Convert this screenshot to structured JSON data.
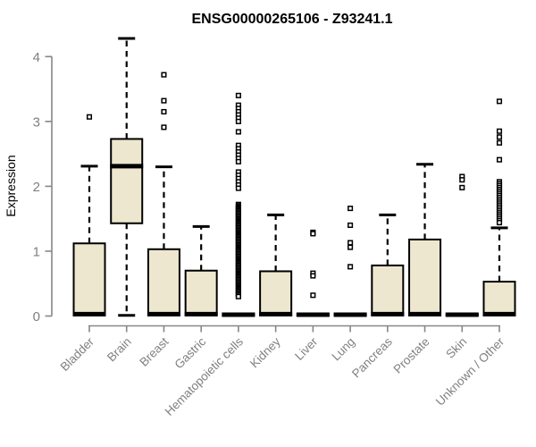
{
  "chart_data": {
    "type": "box",
    "title": "ENSG00000265106 - Z93241.1",
    "xlabel": "",
    "ylabel": "Expression",
    "ylim": [
      0,
      4
    ],
    "yticks": [
      0,
      1,
      2,
      3,
      4
    ],
    "grid": false,
    "legend_position": "none",
    "categories": [
      "Bladder",
      "Brain",
      "Breast",
      "Gastric",
      "Hematopoietic cells",
      "Kidney",
      "Liver",
      "Lung",
      "Pancreas",
      "Prostate",
      "Skin",
      "Unknown / Other"
    ],
    "series": [
      {
        "name": "Bladder",
        "whisker_low": 0.01,
        "q1": 0.01,
        "median": 0.03,
        "q3": 1.12,
        "whisker_high": 2.31,
        "outliers": [
          3.07
        ]
      },
      {
        "name": "Brain",
        "whisker_low": 0.01,
        "q1": 1.43,
        "median": 2.31,
        "q3": 2.73,
        "whisker_high": 4.28,
        "outliers": []
      },
      {
        "name": "Breast",
        "whisker_low": 0.01,
        "q1": 0.01,
        "median": 0.03,
        "q3": 1.03,
        "whisker_high": 2.3,
        "outliers": [
          3.72,
          3.32,
          3.15,
          2.91
        ]
      },
      {
        "name": "Gastric",
        "whisker_low": 0.01,
        "q1": 0.01,
        "median": 0.03,
        "q3": 0.7,
        "whisker_high": 1.38,
        "outliers": []
      },
      {
        "name": "Hematopoietic cells",
        "whisker_low": 0.0,
        "q1": 0.01,
        "median": 0.02,
        "q3": 0.03,
        "whisker_high": 0.04,
        "outliers": [
          3.4,
          3.25,
          3.2,
          3.15,
          3.1,
          3.05,
          3.0,
          2.84,
          2.63,
          2.58,
          2.53,
          2.48,
          2.43,
          2.38,
          2.22,
          2.17,
          2.12,
          2.07,
          2.02,
          1.97,
          1.72,
          1.7,
          1.68,
          1.66,
          1.64,
          1.62,
          1.6,
          1.58,
          1.56,
          1.54,
          1.52,
          1.5,
          1.48,
          1.46,
          1.44,
          1.42,
          1.4,
          1.38,
          1.36,
          1.34,
          1.32,
          1.3,
          1.28,
          1.26,
          1.24,
          1.22,
          1.2,
          1.18,
          1.16,
          1.14,
          1.12,
          1.1,
          1.08,
          1.06,
          1.04,
          1.02,
          1.0,
          0.98,
          0.96,
          0.94,
          0.92,
          0.9,
          0.88,
          0.86,
          0.84,
          0.82,
          0.8,
          0.78,
          0.76,
          0.74,
          0.72,
          0.7,
          0.68,
          0.66,
          0.64,
          0.62,
          0.6,
          0.58,
          0.56,
          0.54,
          0.52,
          0.5,
          0.48,
          0.46,
          0.44,
          0.42,
          0.4,
          0.38,
          0.36,
          0.34,
          0.32,
          0.3
        ]
      },
      {
        "name": "Kidney",
        "whisker_low": 0.01,
        "q1": 0.01,
        "median": 0.03,
        "q3": 0.69,
        "whisker_high": 1.56,
        "outliers": []
      },
      {
        "name": "Liver",
        "whisker_low": 0.0,
        "q1": 0.01,
        "median": 0.02,
        "q3": 0.03,
        "whisker_high": 0.04,
        "outliers": [
          1.29,
          1.27,
          0.66,
          0.62,
          0.32
        ]
      },
      {
        "name": "Lung",
        "whisker_low": 0.0,
        "q1": 0.01,
        "median": 0.02,
        "q3": 0.03,
        "whisker_high": 0.04,
        "outliers": [
          1.66,
          1.4,
          1.13,
          1.06,
          0.76
        ]
      },
      {
        "name": "Pancreas",
        "whisker_low": 0.01,
        "q1": 0.01,
        "median": 0.03,
        "q3": 0.78,
        "whisker_high": 1.56,
        "outliers": []
      },
      {
        "name": "Prostate",
        "whisker_low": 0.01,
        "q1": 0.01,
        "median": 0.03,
        "q3": 1.18,
        "whisker_high": 2.34,
        "outliers": []
      },
      {
        "name": "Skin",
        "whisker_low": 0.0,
        "q1": 0.01,
        "median": 0.02,
        "q3": 0.03,
        "whisker_high": 0.04,
        "outliers": [
          2.15,
          2.1,
          1.98
        ]
      },
      {
        "name": "Unknown / Other",
        "whisker_low": 0.01,
        "q1": 0.01,
        "median": 0.03,
        "q3": 0.53,
        "whisker_high": 1.36,
        "outliers": [
          3.31,
          2.85,
          2.76,
          2.67,
          2.41,
          2.07,
          2.04,
          2.01,
          1.98,
          1.95,
          1.92,
          1.89,
          1.86,
          1.83,
          1.8,
          1.77,
          1.74,
          1.71,
          1.68,
          1.65,
          1.62,
          1.59,
          1.56,
          1.53,
          1.5,
          1.47,
          1.44
        ]
      }
    ],
    "colors": {
      "background": "#ffffff",
      "box_fill": "#ede7cf",
      "box_border": "#000000",
      "median": "#000000",
      "whisker": "#000000",
      "outlier_stroke": "#000000",
      "outlier_fill": "#ffffff",
      "axis": "#878787",
      "tick_label": "#808080",
      "title": "#000000"
    }
  }
}
